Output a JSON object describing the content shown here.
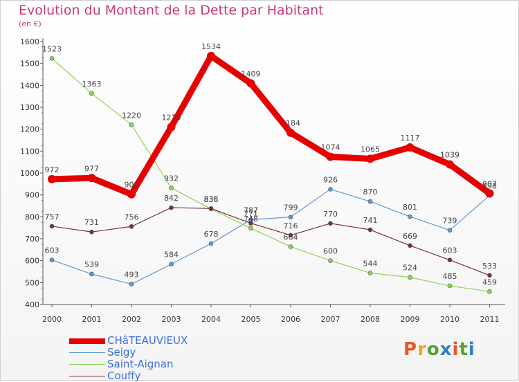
{
  "header": {
    "title": "Evolution du Montant de la Dette par Habitant",
    "subtitle": "(en €)"
  },
  "logo": {
    "text": "Proxiti",
    "colors": [
      "#e8562a",
      "#f3a21d",
      "#5a9e34",
      "#2d7fc2",
      "#e8562a",
      "#5a9e34",
      "#2d7fc2"
    ]
  },
  "chart_data": {
    "type": "line",
    "title": "Evolution du Montant de la Dette par Habitant",
    "subtitle": "(en €)",
    "x": [
      "2000",
      "2001",
      "2002",
      "2003",
      "2004",
      "2005",
      "2006",
      "2007",
      "2008",
      "2009",
      "2010",
      "2011"
    ],
    "ylim": [
      400,
      1600
    ],
    "yticks": [
      400,
      500,
      600,
      700,
      800,
      900,
      1000,
      1100,
      1200,
      1300,
      1400,
      1500,
      1600
    ],
    "grid": false,
    "legend_position": "bottom-left",
    "series": [
      {
        "name": "CHâTEAUVIEUX",
        "color": "#e60000",
        "values": [
          972,
          977,
          903,
          1210,
          1534,
          1409,
          1184,
          1074,
          1065,
          1117,
          1039,
          907
        ]
      },
      {
        "name": "Seigy",
        "color": "#5b9bd5",
        "values": [
          603,
          539,
          493,
          584,
          678,
          787,
          799,
          926,
          870,
          801,
          739,
          898
        ]
      },
      {
        "name": "Saint-Aignan",
        "color": "#8fd44e",
        "values": [
          1523,
          1363,
          1220,
          932,
          836,
          748,
          664,
          600,
          544,
          524,
          485,
          459
        ]
      },
      {
        "name": "Couffy",
        "color": "#7a3030",
        "values": [
          757,
          731,
          756,
          842,
          838,
          771,
          716,
          770,
          741,
          669,
          603,
          533
        ]
      }
    ]
  }
}
